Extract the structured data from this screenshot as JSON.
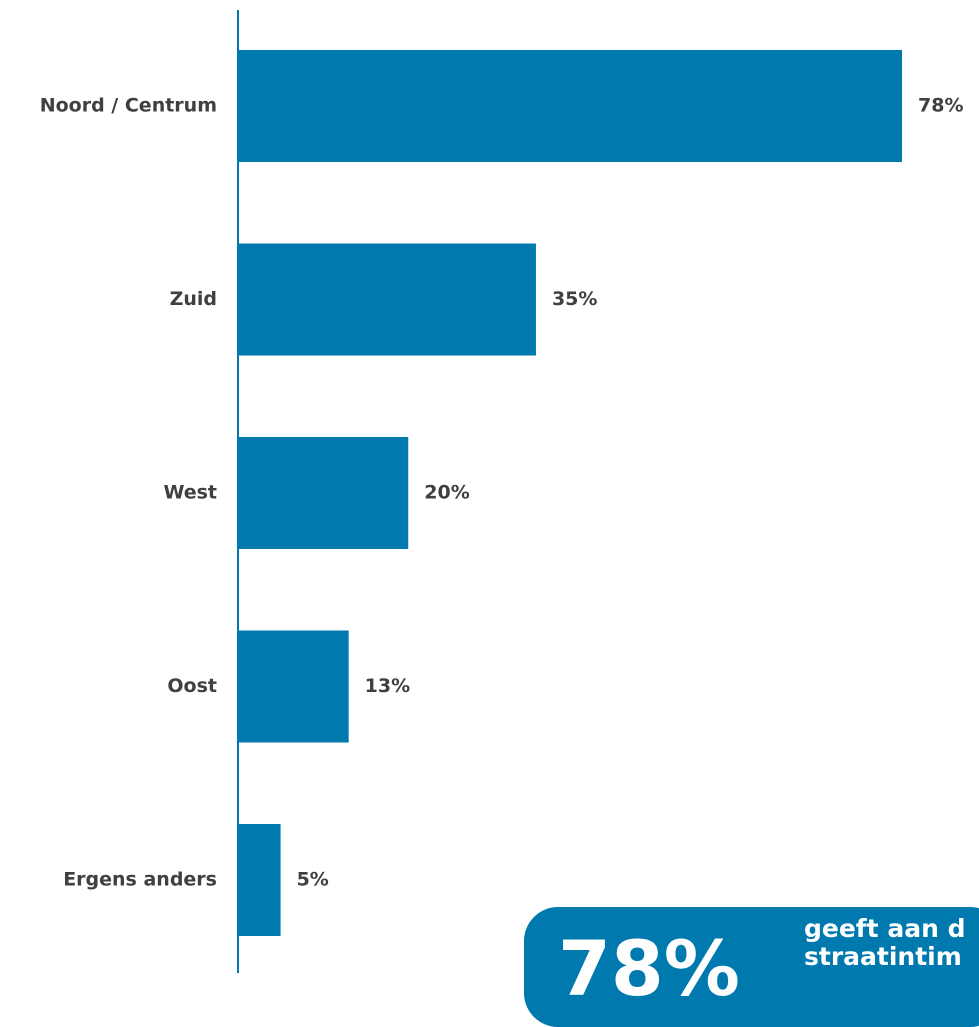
{
  "chart_data": {
    "type": "bar",
    "orientation": "horizontal",
    "categories": [
      "Noord / Centrum",
      "Zuid",
      "West",
      "Oost",
      "Ergens anders"
    ],
    "values": [
      78,
      35,
      20,
      13,
      5
    ],
    "value_labels": [
      "78%",
      "35%",
      "20%",
      "13%",
      "5%"
    ],
    "unit": "%",
    "xlim": [
      0,
      78
    ],
    "grid": false,
    "legend": "none",
    "bar_color": "#007aae"
  },
  "callout": {
    "value": "78%",
    "text_line1": "geeft aan d",
    "text_line2": "straatintim",
    "background": "#007aae"
  }
}
